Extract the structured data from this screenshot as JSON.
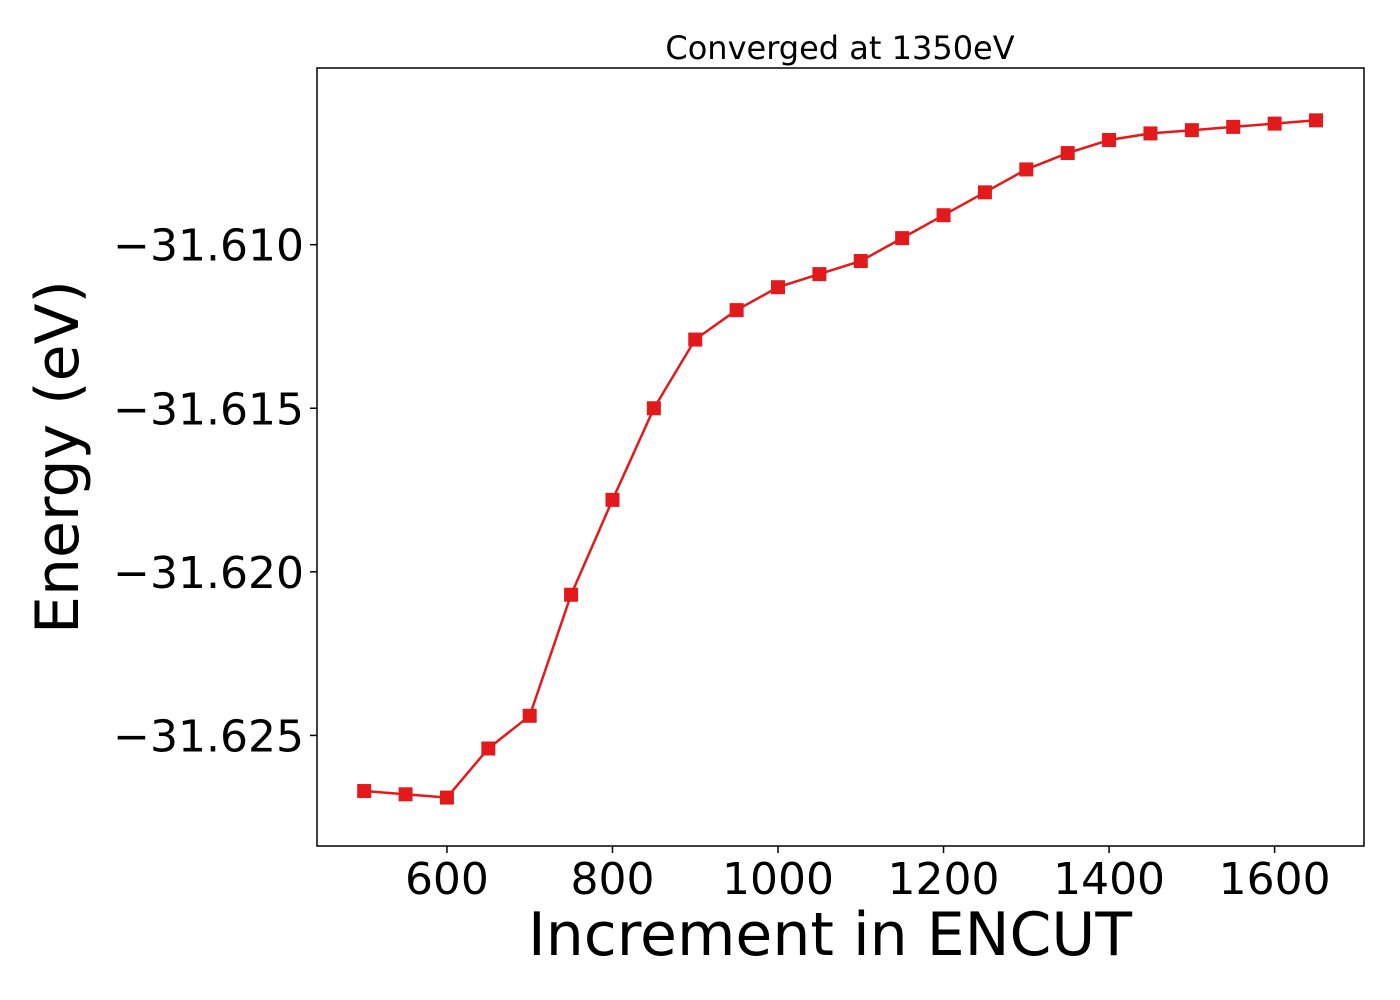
{
  "chart_data": {
    "type": "line",
    "title": "Converged at 1350eV",
    "xlabel": "Increment in ENCUT",
    "ylabel": "Energy (eV)",
    "xlim": [
      443,
      1708
    ],
    "ylim": [
      -31.62838,
      -31.6046
    ],
    "xticks": [
      600,
      800,
      1000,
      1200,
      1400,
      1600
    ],
    "xtick_labels": [
      "600",
      "800",
      "1000",
      "1200",
      "1400",
      "1600"
    ],
    "yticks": [
      -31.625,
      -31.62,
      -31.615,
      -31.61
    ],
    "ytick_labels": [
      "−31.625",
      "−31.620",
      "−31.615",
      "−31.610"
    ],
    "grid": false,
    "series": [
      {
        "color": "#e31a1c",
        "marker": "square",
        "x": [
          500,
          550,
          600,
          650,
          700,
          750,
          800,
          850,
          900,
          950,
          1000,
          1050,
          1100,
          1150,
          1200,
          1250,
          1300,
          1350,
          1400,
          1450,
          1500,
          1550,
          1600,
          1650
        ],
        "y": [
          -31.6267,
          -31.6268,
          -31.6269,
          -31.6254,
          -31.6244,
          -31.6207,
          -31.6178,
          -31.615,
          -31.6129,
          -31.612,
          -31.6113,
          -31.6109,
          -31.6105,
          -31.6098,
          -31.6091,
          -31.6084,
          -31.6077,
          -31.6072,
          -31.6068,
          -31.6066,
          -31.6065,
          -31.6064,
          -31.6063,
          -31.6062
        ]
      }
    ]
  }
}
